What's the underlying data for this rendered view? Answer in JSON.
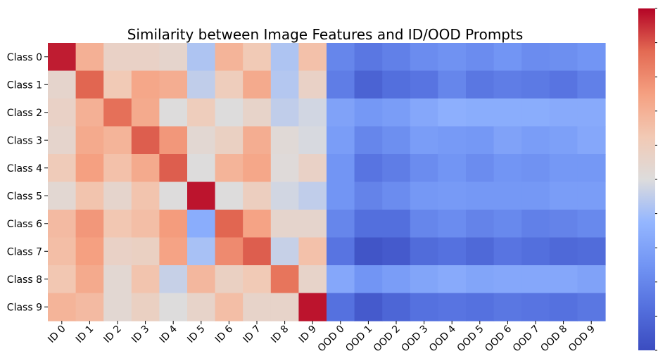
{
  "chart_data": {
    "type": "heatmap",
    "title": "Similarity between Image Features and ID/OOD Prompts",
    "xlabel": "",
    "ylabel": "",
    "rows": [
      "Class 0",
      "Class 1",
      "Class 2",
      "Class 3",
      "Class 4",
      "Class 5",
      "Class 6",
      "Class 7",
      "Class 8",
      "Class 9"
    ],
    "columns": [
      "ID 0",
      "ID 1",
      "ID 2",
      "ID 3",
      "ID 4",
      "ID 5",
      "ID 6",
      "ID 7",
      "ID 8",
      "ID 9",
      "OOD 0",
      "OOD 1",
      "OOD 2",
      "OOD 3",
      "OOD 4",
      "OOD 5",
      "OOD 6",
      "OOD 7",
      "OOD 8",
      "OOD 9"
    ],
    "colormap": "coolwarm",
    "value_range": [
      0,
      1
    ],
    "colorbar": "right",
    "colorbar_ticks_labeled": false,
    "values": [
      [
        0.97,
        0.7,
        0.57,
        0.57,
        0.55,
        0.42,
        0.69,
        0.62,
        0.42,
        0.65,
        0.2,
        0.15,
        0.18,
        0.22,
        0.24,
        0.22,
        0.25,
        0.22,
        0.23,
        0.25
      ],
      [
        0.55,
        0.88,
        0.62,
        0.73,
        0.71,
        0.45,
        0.6,
        0.72,
        0.43,
        0.57,
        0.17,
        0.08,
        0.12,
        0.14,
        0.2,
        0.15,
        0.17,
        0.16,
        0.14,
        0.18
      ],
      [
        0.57,
        0.7,
        0.86,
        0.72,
        0.5,
        0.6,
        0.5,
        0.56,
        0.45,
        0.48,
        0.3,
        0.26,
        0.28,
        0.32,
        0.35,
        0.34,
        0.34,
        0.34,
        0.33,
        0.33
      ],
      [
        0.55,
        0.72,
        0.69,
        0.89,
        0.77,
        0.53,
        0.58,
        0.71,
        0.52,
        0.49,
        0.28,
        0.2,
        0.23,
        0.28,
        0.27,
        0.26,
        0.3,
        0.28,
        0.29,
        0.32
      ],
      [
        0.61,
        0.75,
        0.65,
        0.72,
        0.89,
        0.5,
        0.69,
        0.73,
        0.51,
        0.57,
        0.25,
        0.14,
        0.17,
        0.22,
        0.25,
        0.22,
        0.25,
        0.24,
        0.26,
        0.26
      ],
      [
        0.53,
        0.64,
        0.55,
        0.64,
        0.5,
        0.98,
        0.5,
        0.59,
        0.48,
        0.45,
        0.25,
        0.19,
        0.22,
        0.26,
        0.27,
        0.26,
        0.26,
        0.26,
        0.28,
        0.28
      ],
      [
        0.67,
        0.77,
        0.63,
        0.66,
        0.76,
        0.34,
        0.88,
        0.74,
        0.55,
        0.55,
        0.2,
        0.12,
        0.12,
        0.2,
        0.22,
        0.19,
        0.21,
        0.18,
        0.19,
        0.21
      ],
      [
        0.66,
        0.75,
        0.57,
        0.58,
        0.74,
        0.41,
        0.8,
        0.89,
        0.46,
        0.65,
        0.14,
        0.03,
        0.05,
        0.11,
        0.13,
        0.1,
        0.14,
        0.12,
        0.1,
        0.11
      ],
      [
        0.63,
        0.72,
        0.53,
        0.64,
        0.46,
        0.68,
        0.58,
        0.62,
        0.85,
        0.56,
        0.32,
        0.25,
        0.28,
        0.31,
        0.33,
        0.31,
        0.32,
        0.32,
        0.32,
        0.3
      ],
      [
        0.69,
        0.67,
        0.53,
        0.58,
        0.5,
        0.56,
        0.66,
        0.56,
        0.56,
        0.98,
        0.13,
        0.05,
        0.09,
        0.13,
        0.14,
        0.13,
        0.15,
        0.14,
        0.13,
        0.15
      ]
    ]
  }
}
